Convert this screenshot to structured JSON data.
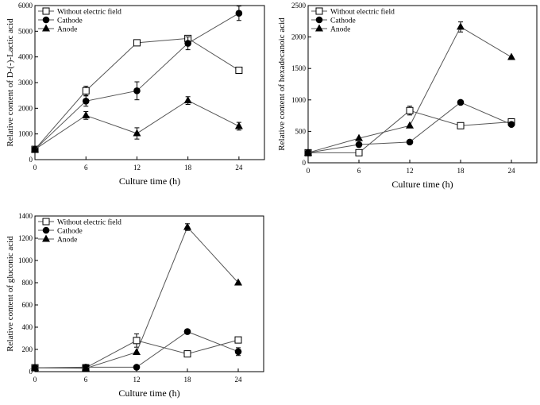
{
  "chart_data": [
    {
      "type": "line",
      "title": "",
      "xlabel": "Culture time (h)",
      "ylabel": "Relative content of D-(-)-Lactic acid",
      "x": [
        0,
        6,
        12,
        18,
        24
      ],
      "xlim": [
        0,
        27
      ],
      "ylim": [
        0,
        6000
      ],
      "xticks": [
        0,
        6,
        12,
        18,
        24
      ],
      "yticks": [
        0,
        1000,
        2000,
        3000,
        4000,
        5000,
        6000
      ],
      "legend_position": "top-left",
      "series": [
        {
          "name": "Without electric field",
          "marker": "open-square",
          "values": [
            400,
            2680,
            4550,
            4720,
            3480
          ],
          "errors": [
            0,
            180,
            100,
            120,
            100
          ]
        },
        {
          "name": "Cathode",
          "marker": "filled-circle",
          "values": [
            400,
            2280,
            2680,
            4530,
            5700
          ],
          "errors": [
            0,
            200,
            350,
            250,
            280
          ]
        },
        {
          "name": "Anode",
          "marker": "filled-triangle",
          "values": [
            400,
            1720,
            1020,
            2300,
            1300
          ],
          "errors": [
            0,
            150,
            220,
            150,
            150
          ]
        }
      ]
    },
    {
      "type": "line",
      "title": "",
      "xlabel": "Culture time (h)",
      "ylabel": "Relative content of hexadecanoic acid",
      "x": [
        0,
        6,
        12,
        18,
        24
      ],
      "xlim": [
        0,
        27
      ],
      "ylim": [
        0,
        2500
      ],
      "xticks": [
        0,
        6,
        12,
        18,
        24
      ],
      "yticks": [
        0,
        500,
        1000,
        1500,
        2000,
        2500
      ],
      "legend_position": "top-left",
      "series": [
        {
          "name": "Without electric field",
          "marker": "open-square",
          "values": [
            160,
            160,
            830,
            590,
            650
          ],
          "errors": [
            0,
            0,
            70,
            30,
            40
          ]
        },
        {
          "name": "Cathode",
          "marker": "filled-circle",
          "values": [
            160,
            290,
            330,
            960,
            610
          ],
          "errors": [
            0,
            0,
            0,
            0,
            0
          ]
        },
        {
          "name": "Anode",
          "marker": "filled-triangle",
          "values": [
            160,
            390,
            590,
            2160,
            1680
          ],
          "errors": [
            0,
            0,
            0,
            80,
            0
          ]
        }
      ]
    },
    {
      "type": "line",
      "title": "",
      "xlabel": "Culture time (h)",
      "ylabel": "Relative content of gluconic acid",
      "x": [
        0,
        6,
        12,
        18,
        24
      ],
      "xlim": [
        0,
        27
      ],
      "ylim": [
        0,
        1400
      ],
      "xticks": [
        0,
        6,
        12,
        18,
        24
      ],
      "yticks": [
        0,
        200,
        400,
        600,
        800,
        1000,
        1200,
        1400
      ],
      "legend_position": "top-left",
      "series": [
        {
          "name": "Without electric field",
          "marker": "open-square",
          "values": [
            35,
            35,
            280,
            160,
            285
          ],
          "errors": [
            0,
            0,
            60,
            0,
            20
          ]
        },
        {
          "name": "Cathode",
          "marker": "filled-circle",
          "values": [
            35,
            40,
            40,
            360,
            180
          ],
          "errors": [
            0,
            0,
            0,
            0,
            35
          ]
        },
        {
          "name": "Anode",
          "marker": "filled-triangle",
          "values": [
            35,
            30,
            175,
            1300,
            800
          ],
          "errors": [
            0,
            0,
            0,
            30,
            0
          ]
        }
      ]
    }
  ]
}
